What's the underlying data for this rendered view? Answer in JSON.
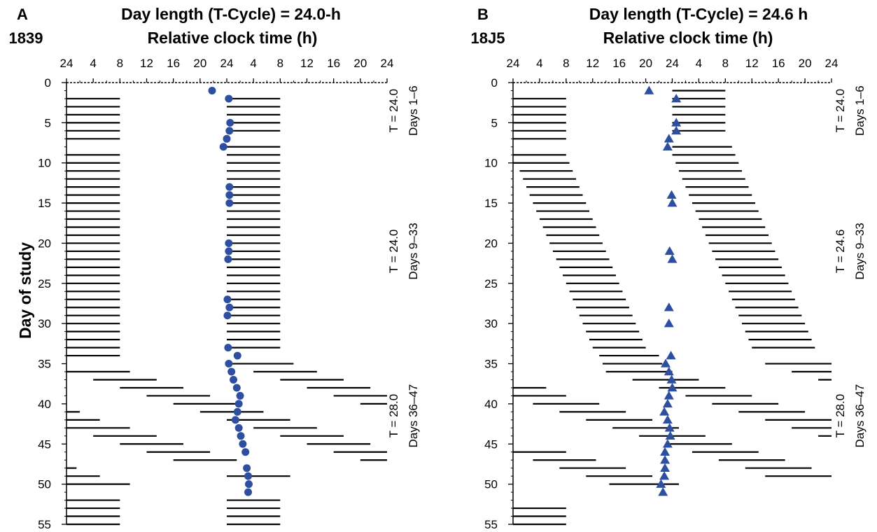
{
  "ylabel": "Day of study",
  "colors": {
    "marker": "#2e4fa0",
    "line": "#000000"
  },
  "panels": [
    {
      "letter": "A",
      "subject": "1839",
      "title": "Day length (T-Cycle) = 24.0-h",
      "subtitle": "Relative clock time (h)",
      "marker_shape": "circle",
      "annotations": [
        {
          "t": "T = 24.0",
          "days": "Days 1–6",
          "center_day": 3.5
        },
        {
          "t": "T = 24.0",
          "days": "Days 9–33",
          "center_day": 21
        },
        {
          "t": "T = 28.0",
          "days": "Days 36–47",
          "center_day": 41.5
        }
      ]
    },
    {
      "letter": "B",
      "subject": "18J5",
      "title": "Day length (T-Cycle) = 24.6 h",
      "subtitle": "Relative clock time (h)",
      "marker_shape": "triangle",
      "annotations": [
        {
          "t": "T = 24.0",
          "days": "Days 1–6",
          "center_day": 3.5
        },
        {
          "t": "T = 24.6",
          "days": "Days 9–33",
          "center_day": 21
        },
        {
          "t": "T = 28.0",
          "days": "Days 36–47",
          "center_day": 41.5
        }
      ]
    }
  ],
  "chart_data": [
    {
      "type": "scatter",
      "panel": "A",
      "xlim": [
        0,
        48
      ],
      "xticks": [
        0,
        4,
        8,
        12,
        16,
        20,
        24,
        28,
        32,
        36,
        40,
        44,
        48
      ],
      "xtick_labels": [
        "24",
        "4",
        "8",
        "12",
        "16",
        "20",
        "24",
        "4",
        "8",
        "12",
        "16",
        "20",
        "24"
      ],
      "ylim": [
        0,
        55
      ],
      "yticks": [
        0,
        5,
        10,
        15,
        20,
        25,
        30,
        35,
        40,
        45,
        50,
        55
      ],
      "ytick_labels": [
        "0",
        "5",
        "10",
        "15",
        "20",
        "25",
        "30",
        "35",
        "40",
        "45",
        "50",
        "55"
      ],
      "ydir": "down",
      "markers": [
        {
          "day": 1,
          "hour": 21.8
        },
        {
          "day": 2,
          "hour": 24.3
        },
        {
          "day": 5,
          "hour": 24.5
        },
        {
          "day": 6,
          "hour": 24.4
        },
        {
          "day": 7,
          "hour": 24.0
        },
        {
          "day": 8,
          "hour": 23.5
        },
        {
          "day": 13,
          "hour": 24.4
        },
        {
          "day": 14,
          "hour": 24.4
        },
        {
          "day": 15,
          "hour": 24.4
        },
        {
          "day": 20,
          "hour": 24.3
        },
        {
          "day": 21,
          "hour": 24.3
        },
        {
          "day": 22,
          "hour": 24.2
        },
        {
          "day": 27,
          "hour": 24.1
        },
        {
          "day": 28,
          "hour": 24.4
        },
        {
          "day": 29,
          "hour": 24.1
        },
        {
          "day": 33,
          "hour": 24.2
        },
        {
          "day": 34,
          "hour": 25.6
        },
        {
          "day": 35,
          "hour": 24.3
        },
        {
          "day": 36,
          "hour": 24.7
        },
        {
          "day": 37,
          "hour": 25.0
        },
        {
          "day": 38,
          "hour": 25.5
        },
        {
          "day": 39,
          "hour": 26.0
        },
        {
          "day": 40,
          "hour": 25.8
        },
        {
          "day": 41,
          "hour": 25.6
        },
        {
          "day": 42,
          "hour": 25.3
        },
        {
          "day": 43,
          "hour": 25.8
        },
        {
          "day": 44,
          "hour": 26.1
        },
        {
          "day": 45,
          "hour": 26.4
        },
        {
          "day": 46,
          "hour": 26.8
        },
        {
          "day": 48,
          "hour": 27.0
        },
        {
          "day": 49,
          "hour": 27.2
        },
        {
          "day": 50,
          "hour": 27.3
        },
        {
          "day": 51,
          "hour": 27.2
        }
      ],
      "bars": [
        [
          2,
          0,
          8
        ],
        [
          2,
          24,
          32
        ],
        [
          3,
          0,
          8
        ],
        [
          3,
          24,
          32
        ],
        [
          4,
          0,
          8
        ],
        [
          4,
          24,
          32
        ],
        [
          5,
          0,
          8
        ],
        [
          5,
          24,
          32
        ],
        [
          6,
          0,
          8
        ],
        [
          6,
          24,
          32
        ],
        [
          7,
          0,
          8
        ],
        [
          8,
          24,
          32
        ],
        [
          9,
          0,
          8
        ],
        [
          9,
          24,
          32
        ],
        [
          10,
          0,
          8
        ],
        [
          10,
          24,
          32
        ],
        [
          11,
          0,
          8
        ],
        [
          11,
          24,
          32
        ],
        [
          12,
          0,
          8
        ],
        [
          12,
          24,
          32
        ],
        [
          13,
          0,
          8
        ],
        [
          13,
          24,
          32
        ],
        [
          14,
          0,
          8
        ],
        [
          14,
          24,
          32
        ],
        [
          15,
          0,
          8
        ],
        [
          15,
          24,
          32
        ],
        [
          16,
          0,
          8
        ],
        [
          16,
          24,
          32
        ],
        [
          17,
          0,
          8
        ],
        [
          17,
          24,
          32
        ],
        [
          18,
          0,
          8
        ],
        [
          18,
          24,
          32
        ],
        [
          19,
          0,
          8
        ],
        [
          19,
          24,
          32
        ],
        [
          20,
          0,
          8
        ],
        [
          20,
          24,
          32
        ],
        [
          21,
          0,
          8
        ],
        [
          21,
          24,
          32
        ],
        [
          22,
          0,
          8
        ],
        [
          22,
          24,
          32
        ],
        [
          23,
          0,
          8
        ],
        [
          23,
          24,
          32
        ],
        [
          24,
          0,
          8
        ],
        [
          24,
          24,
          32
        ],
        [
          25,
          0,
          8
        ],
        [
          25,
          24,
          32
        ],
        [
          26,
          0,
          8
        ],
        [
          26,
          24,
          32
        ],
        [
          27,
          0,
          8
        ],
        [
          27,
          24,
          32
        ],
        [
          28,
          0,
          8
        ],
        [
          28,
          24,
          32
        ],
        [
          29,
          0,
          8
        ],
        [
          29,
          24,
          32
        ],
        [
          30,
          0,
          8
        ],
        [
          30,
          24,
          32
        ],
        [
          31,
          0,
          8
        ],
        [
          31,
          24,
          32
        ],
        [
          32,
          0,
          8
        ],
        [
          32,
          24,
          32
        ],
        [
          33,
          0,
          8
        ],
        [
          33,
          24,
          32
        ],
        [
          34,
          0,
          8
        ],
        [
          35,
          24,
          34
        ],
        [
          36,
          0,
          9.5
        ],
        [
          36,
          28,
          37.5
        ],
        [
          37,
          4,
          13.5
        ],
        [
          37,
          32,
          41.5
        ],
        [
          38,
          8,
          17.5
        ],
        [
          38,
          36,
          45.5
        ],
        [
          39,
          12,
          21.5
        ],
        [
          39,
          40,
          48
        ],
        [
          40,
          16,
          25.5
        ],
        [
          40,
          44,
          48
        ],
        [
          41,
          0,
          2
        ],
        [
          41,
          20,
          29.5
        ],
        [
          42,
          0,
          5
        ],
        [
          42,
          24,
          33.5
        ],
        [
          43,
          0,
          9.5
        ],
        [
          43,
          28,
          37.5
        ],
        [
          44,
          4,
          13.5
        ],
        [
          44,
          32,
          41.5
        ],
        [
          45,
          8,
          17.5
        ],
        [
          45,
          36,
          45.5
        ],
        [
          46,
          12,
          21.5
        ],
        [
          46,
          40,
          48
        ],
        [
          47,
          16,
          25.5
        ],
        [
          47,
          44,
          48
        ],
        [
          48,
          0,
          1.5
        ],
        [
          49,
          0,
          5
        ],
        [
          49,
          24,
          33.5
        ],
        [
          50,
          0,
          9.5
        ],
        [
          52,
          0,
          8
        ],
        [
          52,
          24,
          32
        ],
        [
          53,
          0,
          8
        ],
        [
          53,
          24,
          32
        ],
        [
          54,
          0,
          8
        ],
        [
          54,
          24,
          32
        ],
        [
          55,
          0,
          8
        ],
        [
          55,
          24,
          32
        ]
      ]
    },
    {
      "type": "scatter",
      "panel": "B",
      "xlim": [
        0,
        48
      ],
      "xticks": [
        0,
        4,
        8,
        12,
        16,
        20,
        24,
        28,
        32,
        36,
        40,
        44,
        48
      ],
      "xtick_labels": [
        "24",
        "4",
        "8",
        "12",
        "16",
        "20",
        "24",
        "4",
        "8",
        "12",
        "16",
        "20",
        "24"
      ],
      "ylim": [
        0,
        55
      ],
      "yticks": [
        0,
        5,
        10,
        15,
        20,
        25,
        30,
        35,
        40,
        45,
        50,
        55
      ],
      "ytick_labels": [
        "0",
        "5",
        "10",
        "15",
        "20",
        "25",
        "30",
        "35",
        "40",
        "45",
        "50",
        "55"
      ],
      "ydir": "down",
      "markers": [
        {
          "day": 1,
          "hour": 20.5
        },
        {
          "day": 2,
          "hour": 24.6
        },
        {
          "day": 5,
          "hour": 24.6
        },
        {
          "day": 6,
          "hour": 24.6
        },
        {
          "day": 7,
          "hour": 23.5
        },
        {
          "day": 8,
          "hour": 23.3
        },
        {
          "day": 14,
          "hour": 23.9
        },
        {
          "day": 15,
          "hour": 24.0
        },
        {
          "day": 21,
          "hour": 23.6
        },
        {
          "day": 22,
          "hour": 24.0
        },
        {
          "day": 28,
          "hour": 23.5
        },
        {
          "day": 30,
          "hour": 23.5
        },
        {
          "day": 34,
          "hour": 23.8
        },
        {
          "day": 35,
          "hour": 23.0
        },
        {
          "day": 36,
          "hour": 23.5
        },
        {
          "day": 37,
          "hour": 23.9
        },
        {
          "day": 38,
          "hour": 24.0
        },
        {
          "day": 39,
          "hour": 23.5
        },
        {
          "day": 40,
          "hour": 23.3
        },
        {
          "day": 41,
          "hour": 22.8
        },
        {
          "day": 42,
          "hour": 23.3
        },
        {
          "day": 43,
          "hour": 23.6
        },
        {
          "day": 44,
          "hour": 23.7
        },
        {
          "day": 45,
          "hour": 23.3
        },
        {
          "day": 46,
          "hour": 22.9
        },
        {
          "day": 47,
          "hour": 22.9
        },
        {
          "day": 48,
          "hour": 22.9
        },
        {
          "day": 49,
          "hour": 22.8
        },
        {
          "day": 50,
          "hour": 22.3
        },
        {
          "day": 51,
          "hour": 22.6
        }
      ],
      "bars": [
        [
          1,
          24,
          32
        ],
        [
          2,
          0,
          8
        ],
        [
          2,
          24,
          32
        ],
        [
          3,
          0,
          8
        ],
        [
          3,
          24,
          32
        ],
        [
          4,
          0,
          8
        ],
        [
          4,
          24,
          32
        ],
        [
          5,
          0,
          8
        ],
        [
          5,
          24,
          32
        ],
        [
          6,
          0,
          8
        ],
        [
          6,
          24,
          32
        ],
        [
          7,
          0,
          8
        ],
        [
          8,
          24,
          33
        ],
        [
          9,
          0,
          8
        ],
        [
          9,
          24,
          33.5
        ],
        [
          10,
          0,
          8.5
        ],
        [
          10,
          24.5,
          34
        ],
        [
          11,
          1,
          9
        ],
        [
          11,
          25,
          34.5
        ],
        [
          12,
          1.5,
          9.5
        ],
        [
          12,
          25.5,
          35
        ],
        [
          13,
          2,
          10
        ],
        [
          13,
          26,
          35.5
        ],
        [
          14,
          2.5,
          10.5
        ],
        [
          14,
          26.5,
          36
        ],
        [
          15,
          3,
          11
        ],
        [
          15,
          27,
          36.5
        ],
        [
          16,
          3.5,
          11.5
        ],
        [
          16,
          27.5,
          37
        ],
        [
          17,
          4,
          12
        ],
        [
          17,
          28,
          37.5
        ],
        [
          18,
          4.5,
          12.5
        ],
        [
          18,
          28.5,
          38
        ],
        [
          19,
          5,
          13
        ],
        [
          19,
          29,
          38.5
        ],
        [
          20,
          5.5,
          13.5
        ],
        [
          20,
          29.5,
          39
        ],
        [
          21,
          6,
          14
        ],
        [
          21,
          30,
          39.5
        ],
        [
          22,
          6.5,
          14.5
        ],
        [
          22,
          30.5,
          40
        ],
        [
          23,
          7,
          15
        ],
        [
          23,
          31,
          40.5
        ],
        [
          24,
          7.5,
          15.5
        ],
        [
          24,
          31.5,
          41
        ],
        [
          25,
          8,
          16
        ],
        [
          25,
          32,
          41.5
        ],
        [
          26,
          8.5,
          16.5
        ],
        [
          26,
          32.5,
          42
        ],
        [
          27,
          9,
          17
        ],
        [
          27,
          33,
          42.5
        ],
        [
          28,
          9.5,
          17.5
        ],
        [
          28,
          33.5,
          43
        ],
        [
          29,
          10,
          18
        ],
        [
          29,
          34,
          43.5
        ],
        [
          30,
          10.5,
          18.5
        ],
        [
          30,
          34.5,
          44
        ],
        [
          31,
          11,
          19
        ],
        [
          31,
          35,
          44.5
        ],
        [
          32,
          11.5,
          19.5
        ],
        [
          32,
          35.5,
          45
        ],
        [
          33,
          12,
          20
        ],
        [
          33,
          36,
          45.5
        ],
        [
          34,
          13,
          22
        ],
        [
          35,
          13.5,
          22.5
        ],
        [
          35,
          38,
          48
        ],
        [
          36,
          14,
          24
        ],
        [
          36,
          42,
          48
        ],
        [
          37,
          46,
          48
        ],
        [
          37,
          18,
          28
        ],
        [
          38,
          0,
          5
        ],
        [
          38,
          22,
          32
        ],
        [
          39,
          0,
          8
        ],
        [
          39,
          26,
          36
        ],
        [
          40,
          3,
          13
        ],
        [
          40,
          30,
          40
        ],
        [
          41,
          7,
          17
        ],
        [
          41,
          34,
          44
        ],
        [
          42,
          11,
          21
        ],
        [
          42,
          38,
          48
        ],
        [
          43,
          15,
          25
        ],
        [
          43,
          42,
          48
        ],
        [
          44,
          19,
          29
        ],
        [
          44,
          46,
          48
        ],
        [
          45,
          23,
          33
        ],
        [
          46,
          0,
          8
        ],
        [
          46,
          27,
          37
        ],
        [
          47,
          3,
          12.5
        ],
        [
          47,
          31,
          41
        ],
        [
          48,
          7,
          17
        ],
        [
          48,
          35,
          45
        ],
        [
          49,
          11,
          21
        ],
        [
          49,
          38,
          48
        ],
        [
          50,
          14.5,
          25
        ],
        [
          53,
          0,
          8
        ],
        [
          54,
          0,
          8
        ],
        [
          55,
          0,
          8
        ]
      ]
    }
  ]
}
